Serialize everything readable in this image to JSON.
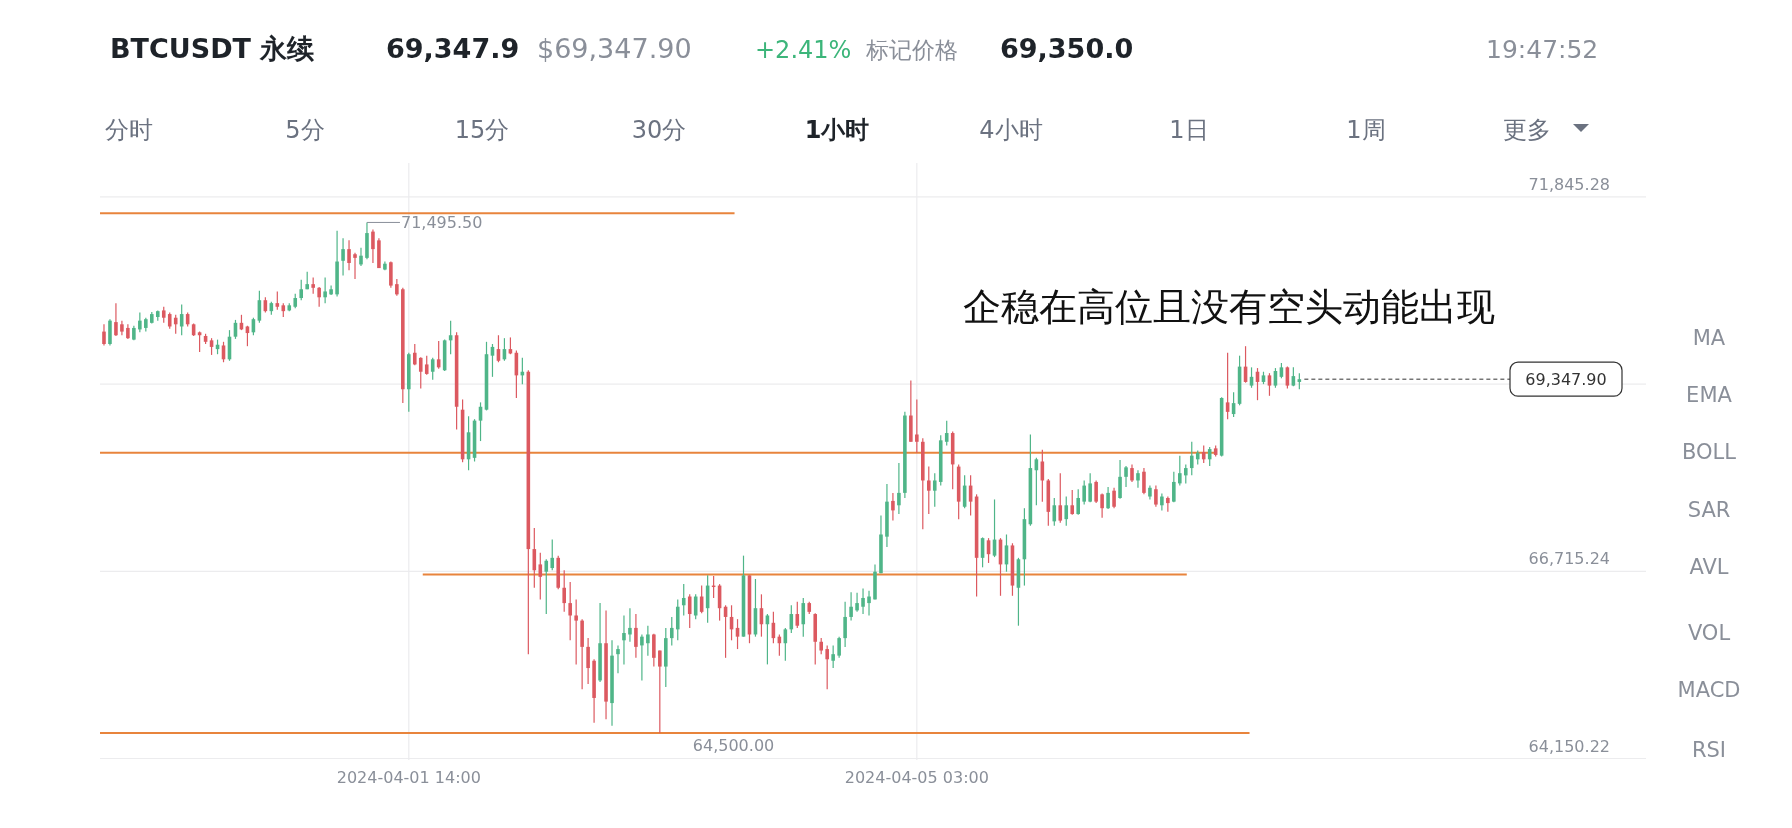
{
  "chart_data": {
    "type": "candlestick",
    "title": "BTCUSDT 永续",
    "x": [
      "2024-03-30T11:00",
      "2024-03-30T12:00",
      "2024-03-30T13:00",
      "2024-03-30T14:00",
      "2024-03-30T15:00",
      "2024-03-30T16:00",
      "2024-03-30T17:00",
      "2024-03-30T18:00",
      "2024-03-30T19:00",
      "2024-03-30T20:00",
      "2024-03-30T21:00",
      "2024-03-30T22:00",
      "2024-03-30T23:00",
      "2024-03-31T00:00",
      "2024-03-31T01:00",
      "2024-03-31T02:00",
      "2024-03-31T03:00",
      "2024-03-31T04:00",
      "2024-03-31T05:00",
      "2024-03-31T06:00",
      "2024-03-31T07:00",
      "2024-03-31T08:00",
      "2024-03-31T09:00",
      "2024-03-31T10:00",
      "2024-03-31T11:00",
      "2024-03-31T12:00",
      "2024-03-31T13:00",
      "2024-03-31T14:00",
      "2024-03-31T15:00",
      "2024-03-31T16:00",
      "2024-03-31T17:00",
      "2024-03-31T18:00",
      "2024-03-31T19:00",
      "2024-03-31T20:00",
      "2024-03-31T21:00",
      "2024-03-31T22:00",
      "2024-03-31T23:00",
      "2024-04-01T00:00",
      "2024-04-01T01:00",
      "2024-04-01T02:00",
      "2024-04-01T03:00",
      "2024-04-01T04:00",
      "2024-04-01T05:00",
      "2024-04-01T06:00",
      "2024-04-01T07:00",
      "2024-04-01T08:00",
      "2024-04-01T09:00",
      "2024-04-01T10:00",
      "2024-04-01T11:00",
      "2024-04-01T12:00",
      "2024-04-01T13:00",
      "2024-04-01T14:00",
      "2024-04-01T15:00",
      "2024-04-01T16:00",
      "2024-04-01T17:00",
      "2024-04-01T18:00",
      "2024-04-01T19:00",
      "2024-04-01T20:00",
      "2024-04-01T21:00",
      "2024-04-01T22:00",
      "2024-04-01T23:00",
      "2024-04-02T00:00",
      "2024-04-02T01:00",
      "2024-04-02T02:00",
      "2024-04-02T03:00",
      "2024-04-02T04:00",
      "2024-04-02T05:00",
      "2024-04-02T06:00",
      "2024-04-02T07:00",
      "2024-04-02T08:00",
      "2024-04-02T09:00",
      "2024-04-02T10:00",
      "2024-04-02T11:00",
      "2024-04-02T12:00",
      "2024-04-02T13:00",
      "2024-04-02T14:00",
      "2024-04-02T15:00",
      "2024-04-02T16:00",
      "2024-04-02T17:00",
      "2024-04-02T18:00",
      "2024-04-02T19:00",
      "2024-04-02T20:00",
      "2024-04-02T21:00",
      "2024-04-02T22:00",
      "2024-04-02T23:00",
      "2024-04-03T00:00",
      "2024-04-03T01:00",
      "2024-04-03T02:00",
      "2024-04-03T03:00",
      "2024-04-03T04:00",
      "2024-04-03T05:00",
      "2024-04-03T06:00",
      "2024-04-03T07:00",
      "2024-04-03T08:00",
      "2024-04-03T09:00",
      "2024-04-03T10:00",
      "2024-04-03T11:00",
      "2024-04-03T12:00",
      "2024-04-03T13:00",
      "2024-04-03T14:00",
      "2024-04-03T15:00",
      "2024-04-03T16:00",
      "2024-04-03T17:00",
      "2024-04-03T18:00",
      "2024-04-03T19:00",
      "2024-04-03T20:00",
      "2024-04-03T21:00",
      "2024-04-03T22:00",
      "2024-04-03T23:00",
      "2024-04-04T00:00",
      "2024-04-04T01:00",
      "2024-04-04T02:00",
      "2024-04-04T03:00",
      "2024-04-04T04:00",
      "2024-04-04T05:00",
      "2024-04-04T06:00",
      "2024-04-04T07:00",
      "2024-04-04T08:00",
      "2024-04-04T09:00",
      "2024-04-04T10:00",
      "2024-04-04T11:00",
      "2024-04-04T12:00",
      "2024-04-04T13:00",
      "2024-04-04T14:00",
      "2024-04-04T15:00",
      "2024-04-04T16:00",
      "2024-04-04T17:00",
      "2024-04-04T18:00",
      "2024-04-04T19:00",
      "2024-04-04T20:00",
      "2024-04-04T21:00",
      "2024-04-04T22:00",
      "2024-04-04T23:00",
      "2024-04-05T00:00",
      "2024-04-05T01:00",
      "2024-04-05T02:00",
      "2024-04-05T03:00",
      "2024-04-05T04:00",
      "2024-04-05T05:00",
      "2024-04-05T06:00",
      "2024-04-05T07:00",
      "2024-04-05T08:00",
      "2024-04-05T09:00",
      "2024-04-05T10:00",
      "2024-04-05T11:00",
      "2024-04-05T12:00",
      "2024-04-05T13:00",
      "2024-04-05T14:00",
      "2024-04-05T15:00",
      "2024-04-05T16:00",
      "2024-04-05T17:00",
      "2024-04-05T18:00",
      "2024-04-05T19:00",
      "2024-04-05T20:00",
      "2024-04-05T21:00",
      "2024-04-05T22:00",
      "2024-04-05T23:00",
      "2024-04-06T00:00",
      "2024-04-06T01:00",
      "2024-04-06T02:00",
      "2024-04-06T03:00",
      "2024-04-06T04:00",
      "2024-04-06T05:00",
      "2024-04-06T06:00",
      "2024-04-06T07:00",
      "2024-04-06T08:00",
      "2024-04-06T09:00",
      "2024-04-06T10:00",
      "2024-04-06T11:00",
      "2024-04-06T12:00",
      "2024-04-06T13:00",
      "2024-04-06T14:00",
      "2024-04-06T15:00",
      "2024-04-06T16:00",
      "2024-04-06T17:00",
      "2024-04-06T18:00",
      "2024-04-06T19:00",
      "2024-04-06T20:00",
      "2024-04-06T21:00",
      "2024-04-06T22:00",
      "2024-04-06T23:00",
      "2024-04-07T00:00",
      "2024-04-07T01:00",
      "2024-04-07T02:00",
      "2024-04-07T03:00",
      "2024-04-07T04:00",
      "2024-04-07T05:00",
      "2024-04-07T06:00",
      "2024-04-07T07:00",
      "2024-04-07T08:00",
      "2024-04-07T09:00",
      "2024-04-07T10:00",
      "2024-04-07T11:00",
      "2024-04-07T12:00",
      "2024-04-07T13:00",
      "2024-04-07T14:00",
      "2024-04-07T15:00",
      "2024-04-07T16:00",
      "2024-04-07T17:00",
      "2024-04-07T18:00",
      "2024-04-07T19:00"
    ],
    "ohlc": [
      [
        70000,
        70100,
        69810,
        69830
      ],
      [
        69830,
        70170,
        69810,
        70150
      ],
      [
        70130,
        70390,
        69940,
        69950
      ],
      [
        70100,
        70150,
        69950,
        70000
      ],
      [
        70050,
        70100,
        69900,
        69910
      ],
      [
        69890,
        70080,
        69880,
        70050
      ],
      [
        70030,
        70260,
        69990,
        70150
      ],
      [
        70050,
        70190,
        70000,
        70170
      ],
      [
        70120,
        70270,
        70110,
        70240
      ],
      [
        70200,
        70290,
        70150,
        70280
      ],
      [
        70290,
        70340,
        70120,
        70190
      ],
      [
        70240,
        70260,
        70040,
        70070
      ],
      [
        70190,
        70230,
        69970,
        70100
      ],
      [
        70070,
        70370,
        69950,
        70240
      ],
      [
        70240,
        70260,
        70070,
        70100
      ],
      [
        70100,
        70110,
        69940,
        69950
      ],
      [
        69990,
        70000,
        69720,
        69950
      ],
      [
        69940,
        69970,
        69830,
        69860
      ],
      [
        69880,
        69910,
        69680,
        69790
      ],
      [
        69760,
        69890,
        69690,
        69820
      ],
      [
        69810,
        69860,
        69580,
        69620
      ],
      [
        69620,
        70020,
        69600,
        69930
      ],
      [
        69930,
        70160,
        69900,
        70120
      ],
      [
        70120,
        70230,
        70020,
        70030
      ],
      [
        70070,
        70080,
        69800,
        69980
      ],
      [
        69990,
        70190,
        69950,
        70170
      ],
      [
        70150,
        70560,
        70120,
        70430
      ],
      [
        70430,
        70470,
        70260,
        70280
      ],
      [
        70280,
        70410,
        70230,
        70390
      ],
      [
        70390,
        70550,
        70300,
        70340
      ],
      [
        70360,
        70390,
        70200,
        70280
      ],
      [
        70290,
        70390,
        70280,
        70360
      ],
      [
        70340,
        70520,
        70320,
        70460
      ],
      [
        70460,
        70710,
        70430,
        70580
      ],
      [
        70580,
        70820,
        70580,
        70650
      ],
      [
        70650,
        70740,
        70520,
        70600
      ],
      [
        70600,
        70610,
        70340,
        70470
      ],
      [
        70470,
        70740,
        70390,
        70550
      ],
      [
        70510,
        70630,
        70500,
        70580
      ],
      [
        70510,
        71380,
        70480,
        70960
      ],
      [
        70970,
        71280,
        70770,
        71130
      ],
      [
        71130,
        71250,
        70840,
        70940
      ],
      [
        71060,
        71080,
        70720,
        71010
      ],
      [
        70920,
        71150,
        70900,
        71040
      ],
      [
        71010,
        71495.5,
        70990,
        71350
      ],
      [
        71370,
        71400,
        70940,
        71130
      ],
      [
        71250,
        71280,
        70870,
        70870
      ],
      [
        70850,
        70960,
        70840,
        70930
      ],
      [
        70950,
        70960,
        70600,
        70630
      ],
      [
        70650,
        70720,
        70490,
        70510
      ],
      [
        70580,
        70600,
        69020,
        69210
      ],
      [
        69210,
        69710,
        68900,
        69690
      ],
      [
        69710,
        69830,
        69540,
        69550
      ],
      [
        69640,
        69650,
        69220,
        69450
      ],
      [
        69550,
        69670,
        69410,
        69420
      ],
      [
        69450,
        69640,
        69340,
        69620
      ],
      [
        69620,
        69870,
        69490,
        69510
      ],
      [
        69470,
        69890,
        69460,
        69880
      ],
      [
        69880,
        70150,
        69690,
        69950
      ],
      [
        69950,
        69990,
        68660,
        68970
      ],
      [
        68930,
        69070,
        68210,
        68250
      ],
      [
        68250,
        68840,
        68100,
        68620
      ],
      [
        68270,
        68800,
        68220,
        68780
      ],
      [
        68780,
        69030,
        68500,
        68970
      ],
      [
        68930,
        69860,
        68920,
        69690
      ],
      [
        69670,
        69830,
        69380,
        69790
      ],
      [
        69760,
        69950,
        69580,
        69600
      ],
      [
        69620,
        69910,
        69600,
        69760
      ],
      [
        69760,
        69920,
        69690,
        69700
      ],
      [
        69710,
        69740,
        69090,
        69400
      ],
      [
        69400,
        69640,
        69280,
        69450
      ],
      [
        69450,
        69470,
        65580,
        67020
      ],
      [
        67020,
        67310,
        66490,
        66730
      ],
      [
        66810,
        66970,
        66330,
        66640
      ],
      [
        66710,
        66880,
        66130,
        66860
      ],
      [
        66760,
        67150,
        66730,
        66900
      ],
      [
        66900,
        66930,
        66470,
        66490
      ],
      [
        66490,
        66730,
        66160,
        66280
      ],
      [
        66280,
        66570,
        65770,
        66110
      ],
      [
        66110,
        66330,
        65440,
        66040
      ],
      [
        66040,
        66060,
        65100,
        65680
      ],
      [
        65680,
        65800,
        65170,
        65390
      ],
      [
        65490,
        65510,
        64640,
        64980
      ],
      [
        65220,
        66280,
        65200,
        65730
      ],
      [
        65730,
        66180,
        64690,
        64930
      ],
      [
        64910,
        65770,
        64600,
        65560
      ],
      [
        65580,
        65700,
        65320,
        65650
      ],
      [
        65770,
        66110,
        65440,
        65870
      ],
      [
        65850,
        66210,
        65750,
        65940
      ],
      [
        65940,
        66130,
        65530,
        65680
      ],
      [
        65700,
        65850,
        65220,
        65820
      ],
      [
        65730,
        65970,
        65560,
        65850
      ],
      [
        65850,
        65860,
        65410,
        65530
      ],
      [
        65630,
        65630,
        64500,
        65410
      ],
      [
        65410,
        65940,
        65130,
        65800
      ],
      [
        65800,
        66090,
        65700,
        65940
      ],
      [
        65920,
        66330,
        65770,
        66230
      ],
      [
        66250,
        66540,
        66110,
        66350
      ],
      [
        66370,
        66400,
        65940,
        66130
      ],
      [
        66110,
        66400,
        66060,
        66370
      ],
      [
        66370,
        66520,
        66140,
        66160
      ],
      [
        66210,
        66660,
        66010,
        66520
      ],
      [
        66520,
        66650,
        66350,
        66500
      ],
      [
        66520,
        66540,
        66040,
        66210
      ],
      [
        66230,
        66250,
        65530,
        66090
      ],
      [
        66090,
        66250,
        65770,
        65920
      ],
      [
        65940,
        66060,
        65650,
        65820
      ],
      [
        65820,
        66930,
        65820,
        66660
      ],
      [
        66660,
        66660,
        65730,
        65850
      ],
      [
        65850,
        66610,
        65820,
        66210
      ],
      [
        66210,
        66400,
        65820,
        65990
      ],
      [
        65990,
        66130,
        65440,
        66110
      ],
      [
        66010,
        66160,
        65730,
        65800
      ],
      [
        65820,
        65850,
        65560,
        65730
      ],
      [
        65730,
        65940,
        65490,
        65920
      ],
      [
        65920,
        66250,
        65870,
        66130
      ],
      [
        66130,
        66300,
        65940,
        65970
      ],
      [
        65990,
        66350,
        65820,
        66280
      ],
      [
        66280,
        66300,
        66130,
        66160
      ],
      [
        66130,
        66140,
        65440,
        65750
      ],
      [
        65750,
        65800,
        65580,
        65630
      ],
      [
        65650,
        65700,
        65100,
        65510
      ],
      [
        65490,
        65700,
        65390,
        65580
      ],
      [
        65560,
        65820,
        65530,
        65800
      ],
      [
        65800,
        66300,
        65680,
        66090
      ],
      [
        66090,
        66430,
        66040,
        66230
      ],
      [
        66180,
        66420,
        66160,
        66280
      ],
      [
        66230,
        66480,
        66130,
        66350
      ],
      [
        66280,
        66450,
        66110,
        66370
      ],
      [
        66330,
        66810,
        66330,
        66710
      ],
      [
        66690,
        67480,
        66690,
        67220
      ],
      [
        67190,
        67910,
        67050,
        67670
      ],
      [
        67680,
        67790,
        67410,
        67550
      ],
      [
        67620,
        68200,
        67500,
        67790
      ],
      [
        67790,
        68900,
        67720,
        68850
      ],
      [
        68850,
        69330,
        68490,
        68490
      ],
      [
        68590,
        69070,
        68340,
        68490
      ],
      [
        68490,
        68540,
        67290,
        67960
      ],
      [
        67960,
        68150,
        67500,
        67820
      ],
      [
        67820,
        68060,
        67600,
        67960
      ],
      [
        67940,
        68580,
        67890,
        68510
      ],
      [
        68490,
        68780,
        68440,
        68610
      ],
      [
        68610,
        68630,
        67840,
        68180
      ],
      [
        68150,
        68180,
        67430,
        67670
      ],
      [
        67600,
        68030,
        67580,
        67890
      ],
      [
        67890,
        68030,
        67480,
        67670
      ],
      [
        67740,
        67770,
        66370,
        66900
      ],
      [
        66900,
        67180,
        66770,
        67170
      ],
      [
        67140,
        67170,
        66830,
        66950
      ],
      [
        66930,
        67700,
        66910,
        67150
      ],
      [
        67150,
        67170,
        66380,
        66810
      ],
      [
        66810,
        67220,
        66710,
        67070
      ],
      [
        67070,
        67100,
        66380,
        66520
      ],
      [
        66490,
        66900,
        65970,
        66880
      ],
      [
        66880,
        67580,
        66520,
        67430
      ],
      [
        67360,
        68590,
        67340,
        68130
      ],
      [
        68100,
        68270,
        67620,
        68250
      ],
      [
        68220,
        68380,
        67670,
        67960
      ],
      [
        67960,
        67980,
        67340,
        67530
      ],
      [
        67400,
        67720,
        67340,
        67620
      ],
      [
        67620,
        68060,
        67380,
        67410
      ],
      [
        67430,
        67740,
        67340,
        67620
      ],
      [
        67620,
        67830,
        67490,
        67500
      ],
      [
        67500,
        67840,
        67490,
        67720
      ],
      [
        67670,
        67960,
        67630,
        67890
      ],
      [
        67670,
        68060,
        67660,
        67920
      ],
      [
        67940,
        67960,
        67650,
        67670
      ],
      [
        67770,
        67780,
        67450,
        67580
      ],
      [
        67580,
        67870,
        67570,
        67790
      ],
      [
        67820,
        67860,
        67580,
        67600
      ],
      [
        67720,
        68240,
        67710,
        68010
      ],
      [
        68010,
        68160,
        67870,
        68140
      ],
      [
        68130,
        68180,
        67940,
        67960
      ],
      [
        67960,
        68100,
        67860,
        68060
      ],
      [
        68080,
        68130,
        67770,
        67790
      ],
      [
        67740,
        67890,
        67700,
        67860
      ],
      [
        67840,
        67890,
        67600,
        67630
      ],
      [
        67620,
        67780,
        67550,
        67740
      ],
      [
        67720,
        67740,
        67530,
        67650
      ],
      [
        67670,
        68080,
        67660,
        67940
      ],
      [
        67920,
        68300,
        67890,
        68060
      ],
      [
        68030,
        68180,
        67920,
        68130
      ],
      [
        68130,
        68490,
        68030,
        68300
      ],
      [
        68250,
        68370,
        68180,
        68340
      ],
      [
        68350,
        68440,
        68200,
        68250
      ],
      [
        68250,
        68420,
        68160,
        68390
      ],
      [
        68400,
        68440,
        68290,
        68310
      ],
      [
        68300,
        69100,
        68290,
        69090
      ],
      [
        69030,
        69710,
        68800,
        68900
      ],
      [
        68870,
        69170,
        68830,
        69020
      ],
      [
        69010,
        69670,
        68990,
        69520
      ],
      [
        69520,
        69800,
        69300,
        69310
      ],
      [
        69260,
        69510,
        69230,
        69380
      ],
      [
        69450,
        69500,
        69060,
        69310
      ],
      [
        69310,
        69450,
        69280,
        69400
      ],
      [
        69400,
        69430,
        69120,
        69260
      ],
      [
        69260,
        69500,
        69230,
        69460
      ],
      [
        69380,
        69570,
        69360,
        69510
      ],
      [
        69510,
        69520,
        69220,
        69260
      ],
      [
        69260,
        69510,
        69250,
        69390
      ],
      [
        69310,
        69430,
        69210,
        69347.9
      ]
    ],
    "series": [
      {
        "type": "line",
        "color": "#e8843c",
        "x": [
          "2024-03-30T10:20",
          "2024-04-03T20:30"
        ],
        "values": [
          71620,
          71620
        ]
      },
      {
        "type": "line",
        "color": "#e8843c",
        "x": [
          "2024-03-30T10:20",
          "2024-04-07T05:00"
        ],
        "values": [
          68340,
          68340
        ]
      },
      {
        "type": "line",
        "color": "#e8843c",
        "x": [
          "2024-04-01T16:20",
          "2024-04-07T00:10"
        ],
        "values": [
          66670,
          66670
        ]
      },
      {
        "type": "line",
        "color": "#e8843c",
        "x": [
          "2024-03-30T10:20",
          "2024-04-07T10:40"
        ],
        "values": [
          64500,
          64500
        ]
      }
    ],
    "xlim": [
      "2024-03-30T10:20",
      "2024-04-10T05:00"
    ],
    "xticks": [
      {
        "value": "2024-04-01T14:00",
        "label": "2024-04-01 14:00"
      },
      {
        "value": "2024-04-05T03:00",
        "label": "2024-04-05 03:00"
      }
    ],
    "ylim": [
      64130,
      72310
    ],
    "yticks": [
      {
        "value": 64150.22,
        "label": "64,150.22"
      },
      {
        "value": 66715.24,
        "label": "66,715.24"
      },
      {
        "value": 69280.26,
        "label": null
      },
      {
        "value": 71845.28,
        "label": "71,845.28"
      }
    ],
    "grid": true,
    "ref_lines": [
      {
        "axis": "y",
        "value": 69347.9,
        "label": "69,347.90",
        "color": "#333333",
        "line_style": "dashed"
      }
    ],
    "annotations": [
      "企稳在高位且没有空头动能出现",
      "69,347.9",
      "$69,347.90",
      "+2.41%",
      "标记价格",
      "69,350.0",
      "19:47:52",
      "分时",
      "5分",
      "15分",
      "30分",
      "1小时",
      "4小时",
      "1日",
      "1周",
      "更多",
      "MA",
      "EMA",
      "BOLL",
      "SAR",
      "AVL",
      "VOL",
      "MACD",
      "RSI",
      {
        "text": "71,495.50",
        "x": "2024-04-01T07:00",
        "y": 71495.5
      },
      {
        "text": "64,500.00",
        "x": "2024-04-03T08:00",
        "y": 64500
      }
    ]
  }
}
